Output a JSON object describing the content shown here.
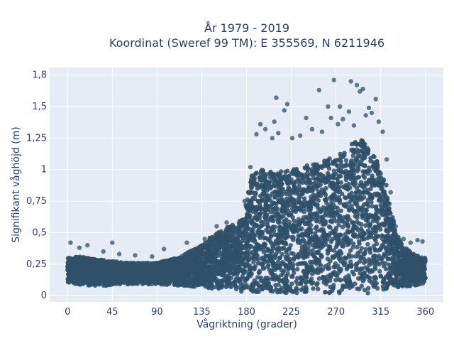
{
  "chart_data": {
    "type": "scatter",
    "title_line1": "År 1979 - 2019",
    "title_line2": "Koordinat (Sweref 99 TM): E 355569, N 6211946",
    "xlabel": "Vågriktning (grader)",
    "ylabel": "Signifikant våghöjd (m)",
    "xlim": [
      -18,
      378
    ],
    "ylim": [
      -0.05,
      1.81
    ],
    "x_ticks": [
      0,
      45,
      90,
      135,
      180,
      225,
      270,
      315,
      360
    ],
    "x_tick_labels": [
      "0",
      "45",
      "90",
      "135",
      "180",
      "225",
      "270",
      "315",
      "360"
    ],
    "y_ticks": [
      0,
      0.25,
      0.5,
      0.75,
      1,
      1.25,
      1.5,
      1.75
    ],
    "y_tick_labels": [
      "0",
      "0,25",
      "0,5",
      "0,75",
      "1",
      "1,25",
      "1,5",
      "1,75"
    ],
    "y_top_label": "1,8",
    "grid": true,
    "background_color": "#e5ecf6",
    "marker_color": "#2f5068",
    "envelope": {
      "x": [
        0,
        10,
        20,
        40,
        60,
        90,
        110,
        130,
        150,
        165,
        175,
        180,
        185,
        195,
        210,
        225,
        240,
        255,
        270,
        285,
        295,
        305,
        315,
        320,
        325,
        330,
        340,
        350,
        360
      ],
      "lower": [
        0.1,
        0.09,
        0.08,
        0.08,
        0.09,
        0.09,
        0.08,
        0.07,
        0.05,
        0.04,
        0.03,
        0.02,
        0.02,
        0.02,
        0.02,
        0.02,
        0.02,
        0.02,
        0.02,
        0.02,
        0.02,
        0.02,
        0.03,
        0.04,
        0.05,
        0.06,
        0.07,
        0.08,
        0.1
      ],
      "upper": [
        0.3,
        0.31,
        0.3,
        0.28,
        0.26,
        0.26,
        0.3,
        0.38,
        0.5,
        0.56,
        0.6,
        0.75,
        0.95,
        1.0,
        0.98,
        1.0,
        1.03,
        1.07,
        1.1,
        1.2,
        1.25,
        1.15,
        1.02,
        0.9,
        0.72,
        0.5,
        0.38,
        0.32,
        0.3
      ]
    },
    "outliers": [
      {
        "x": 3,
        "y": 0.42
      },
      {
        "x": 12,
        "y": 0.38
      },
      {
        "x": 20,
        "y": 0.4
      },
      {
        "x": 36,
        "y": 0.35
      },
      {
        "x": 45,
        "y": 0.42
      },
      {
        "x": 52,
        "y": 0.33
      },
      {
        "x": 68,
        "y": 0.32
      },
      {
        "x": 85,
        "y": 0.31
      },
      {
        "x": 97,
        "y": 0.37
      },
      {
        "x": 120,
        "y": 0.42
      },
      {
        "x": 138,
        "y": 0.45
      },
      {
        "x": 150,
        "y": 0.55
      },
      {
        "x": 160,
        "y": 0.58
      },
      {
        "x": 178,
        "y": 0.75
      },
      {
        "x": 184,
        "y": 1.02
      },
      {
        "x": 190,
        "y": 1.28
      },
      {
        "x": 194,
        "y": 1.36
      },
      {
        "x": 199,
        "y": 1.32
      },
      {
        "x": 206,
        "y": 1.25
      },
      {
        "x": 208,
        "y": 1.38
      },
      {
        "x": 210,
        "y": 1.57
      },
      {
        "x": 212,
        "y": 1.29
      },
      {
        "x": 218,
        "y": 1.47
      },
      {
        "x": 221,
        "y": 1.52
      },
      {
        "x": 226,
        "y": 1.25
      },
      {
        "x": 234,
        "y": 1.27
      },
      {
        "x": 240,
        "y": 1.41
      },
      {
        "x": 246,
        "y": 1.32
      },
      {
        "x": 253,
        "y": 1.63
      },
      {
        "x": 256,
        "y": 1.3
      },
      {
        "x": 262,
        "y": 1.5
      },
      {
        "x": 265,
        "y": 1.41
      },
      {
        "x": 268,
        "y": 1.71
      },
      {
        "x": 272,
        "y": 1.36
      },
      {
        "x": 274,
        "y": 1.5
      },
      {
        "x": 277,
        "y": 1.4
      },
      {
        "x": 283,
        "y": 1.46
      },
      {
        "x": 285,
        "y": 1.7
      },
      {
        "x": 288,
        "y": 1.35
      },
      {
        "x": 291,
        "y": 1.67
      },
      {
        "x": 294,
        "y": 1.62
      },
      {
        "x": 297,
        "y": 1.64
      },
      {
        "x": 300,
        "y": 1.43
      },
      {
        "x": 303,
        "y": 1.49
      },
      {
        "x": 306,
        "y": 1.45
      },
      {
        "x": 310,
        "y": 1.56
      },
      {
        "x": 313,
        "y": 1.38
      },
      {
        "x": 317,
        "y": 1.3
      },
      {
        "x": 321,
        "y": 1.08
      },
      {
        "x": 325,
        "y": 0.82
      },
      {
        "x": 330,
        "y": 0.55
      },
      {
        "x": 338,
        "y": 0.45
      },
      {
        "x": 345,
        "y": 0.42
      },
      {
        "x": 352,
        "y": 0.44
      },
      {
        "x": 357,
        "y": 0.43
      }
    ]
  }
}
